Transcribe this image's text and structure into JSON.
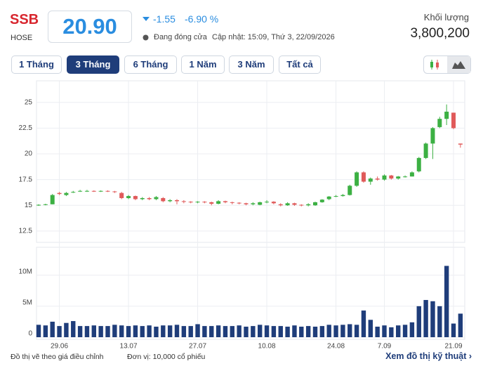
{
  "header": {
    "ticker": "SSB",
    "exchange": "HOSE",
    "price": "20.90",
    "change": "-1.55",
    "change_pct": "-6.90 %",
    "status": "Đang đóng cửa",
    "updated": "Cập nhật: 15:09, Thứ 3, 22/09/2026",
    "volume_label": "Khối lượng",
    "volume": "3,800,200"
  },
  "buttons": [
    "1 Tháng",
    "3 Tháng",
    "6 Tháng",
    "1 Năm",
    "3 Năm",
    "Tất cả"
  ],
  "footer": {
    "note": "Đồ thị vẽ theo giá điều chỉnh",
    "unit": "Đơn vị: 10,000 cổ phiếu",
    "link": "Xem đồ thị kỹ thuật ›"
  },
  "chart_data": {
    "type": "candlestick",
    "categories": [
      null,
      null,
      null,
      "29.06",
      null,
      null,
      null,
      null,
      null,
      null,
      null,
      null,
      null,
      "13.07",
      null,
      null,
      null,
      null,
      null,
      null,
      null,
      null,
      null,
      "27.07",
      null,
      null,
      null,
      null,
      null,
      null,
      null,
      null,
      null,
      "10.08",
      null,
      null,
      null,
      null,
      null,
      null,
      null,
      null,
      null,
      "24.08",
      null,
      null,
      null,
      null,
      null,
      null,
      "7.09",
      null,
      null,
      null,
      null,
      null,
      null,
      null,
      null,
      null,
      "21.09",
      null
    ],
    "open": [
      15.0,
      15.05,
      15.1,
      16.2,
      16.0,
      16.3,
      16.35,
      16.4,
      16.4,
      16.35,
      16.4,
      16.35,
      16.2,
      15.7,
      15.9,
      15.6,
      15.7,
      15.6,
      15.7,
      15.4,
      15.5,
      15.4,
      15.35,
      15.3,
      15.35,
      15.3,
      15.15,
      15.4,
      15.3,
      15.25,
      15.2,
      15.1,
      15.05,
      15.3,
      15.35,
      15.1,
      15.0,
      15.2,
      15.05,
      15.0,
      15.0,
      15.3,
      15.6,
      15.85,
      15.9,
      16.0,
      16.9,
      18.2,
      17.3,
      17.6,
      17.5,
      17.9,
      17.6,
      17.8,
      17.8,
      18.3,
      19.6,
      21.0,
      22.6,
      23.4,
      24.0,
      21.0
    ],
    "high": [
      15.1,
      15.15,
      16.1,
      16.3,
      16.3,
      16.4,
      16.5,
      16.5,
      16.45,
      16.45,
      16.45,
      16.4,
      16.3,
      16.0,
      15.95,
      15.8,
      15.8,
      15.9,
      15.8,
      15.6,
      15.6,
      15.5,
      15.4,
      15.4,
      15.4,
      15.35,
      15.5,
      15.45,
      15.35,
      15.3,
      15.25,
      15.3,
      15.35,
      15.5,
      15.4,
      15.2,
      15.3,
      15.25,
      15.1,
      15.2,
      15.35,
      15.6,
      15.9,
      16.0,
      16.1,
      17.0,
      18.3,
      18.3,
      17.7,
      17.8,
      18.0,
      17.95,
      17.85,
      17.9,
      18.3,
      19.7,
      21.1,
      22.6,
      23.6,
      24.8,
      24.0,
      21.0
    ],
    "low": [
      14.95,
      15.0,
      15.1,
      16.0,
      15.9,
      16.2,
      16.3,
      16.3,
      16.3,
      16.3,
      16.3,
      16.2,
      15.6,
      15.6,
      15.5,
      15.5,
      15.5,
      15.5,
      15.3,
      15.3,
      15.1,
      15.2,
      15.2,
      15.2,
      15.2,
      15.0,
      15.1,
      15.2,
      15.1,
      15.1,
      15.0,
      15.0,
      15.0,
      15.2,
      15.1,
      14.9,
      14.95,
      14.95,
      14.9,
      14.9,
      14.95,
      15.25,
      15.5,
      15.8,
      15.85,
      15.95,
      16.8,
      17.2,
      17.0,
      17.4,
      17.4,
      17.5,
      17.5,
      17.7,
      17.8,
      18.2,
      19.5,
      19.5,
      22.5,
      22.8,
      22.4,
      20.6
    ],
    "close": [
      15.05,
      15.1,
      16.0,
      16.1,
      16.2,
      16.3,
      16.4,
      16.4,
      16.35,
      16.4,
      16.35,
      16.3,
      15.7,
      15.9,
      15.6,
      15.7,
      15.6,
      15.8,
      15.4,
      15.5,
      15.4,
      15.35,
      15.3,
      15.35,
      15.3,
      15.15,
      15.4,
      15.3,
      15.25,
      15.2,
      15.1,
      15.2,
      15.3,
      15.35,
      15.2,
      15.0,
      15.2,
      15.05,
      15.0,
      15.1,
      15.3,
      15.55,
      15.85,
      15.9,
      16.0,
      16.9,
      18.2,
      17.3,
      17.6,
      17.5,
      17.9,
      17.6,
      17.8,
      17.8,
      18.2,
      19.6,
      21.0,
      22.5,
      23.4,
      24.1,
      22.5,
      20.9
    ],
    "up_color": "#3cb043",
    "down_color": "#e05a5a",
    "ylim": [
      11.4,
      27.1
    ],
    "yticks": [
      12.5,
      15,
      17.5,
      20,
      22.5,
      25
    ],
    "grid": true,
    "volume": {
      "color": "#1f3d7a",
      "ylim": [
        0,
        14500000
      ],
      "yticks": [
        0,
        {
          "value": 5000000,
          "label": "5M"
        },
        {
          "value": 10000000,
          "label": "10M"
        }
      ],
      "values": [
        2000000,
        1900000,
        2500000,
        1800000,
        2300000,
        2600000,
        1800000,
        1800000,
        1900000,
        1800000,
        1800000,
        2000000,
        1900000,
        1800000,
        1900000,
        1800000,
        1900000,
        1700000,
        1900000,
        1900000,
        2000000,
        1800000,
        1800000,
        2100000,
        1800000,
        1800000,
        1900000,
        1800000,
        1800000,
        1900000,
        1700000,
        1800000,
        2000000,
        1900000,
        1800000,
        1800000,
        1700000,
        1900000,
        1700000,
        1800000,
        1700000,
        1800000,
        2000000,
        1900000,
        2000000,
        2100000,
        2000000,
        4300000,
        2800000,
        1700000,
        1900000,
        1600000,
        1900000,
        2000000,
        2400000,
        5000000,
        6000000,
        5800000,
        5000000,
        11500000,
        2200000,
        3800200
      ]
    }
  }
}
